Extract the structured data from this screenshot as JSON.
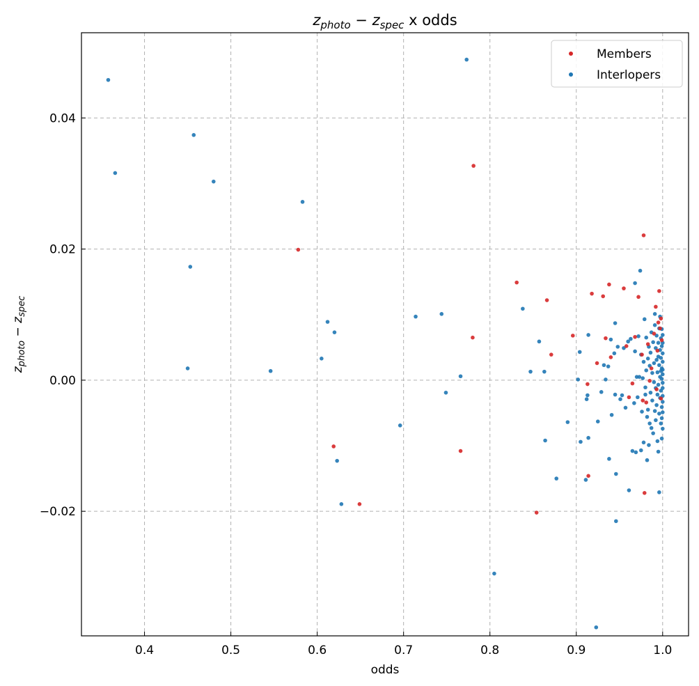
{
  "chart_data": {
    "type": "scatter",
    "title": "z_photo − z_spec x odds",
    "title_parts": {
      "z": "z",
      "photo_sub": "photo",
      "minus": " − ",
      "spec_sub": "spec",
      "suffix": " x odds"
    },
    "xlabel": "odds",
    "ylabel_parts": {
      "z": "z",
      "photo_sub": "photo",
      "minus": " − ",
      "spec_sub": "spec"
    },
    "xlim": [
      0.327,
      1.03
    ],
    "ylim": [
      -0.039,
      0.053
    ],
    "xticks": [
      0.4,
      0.5,
      0.6,
      0.7,
      0.8,
      0.9,
      1.0
    ],
    "xtick_labels": [
      "0.4",
      "0.5",
      "0.6",
      "0.7",
      "0.8",
      "0.9",
      "1.0"
    ],
    "yticks": [
      -0.02,
      0.0,
      0.02,
      0.04
    ],
    "ytick_labels": [
      "−0.02",
      "0.00",
      "0.02",
      "0.04"
    ],
    "grid": true,
    "legend_position": "top-right",
    "series": [
      {
        "name": "Members",
        "color": "#d62728",
        "points": [
          [
            0.578,
            0.0199
          ],
          [
            0.619,
            -0.0101
          ],
          [
            0.649,
            -0.0189
          ],
          [
            0.766,
            -0.0108
          ],
          [
            0.78,
            0.0065
          ],
          [
            0.781,
            0.0327
          ],
          [
            0.831,
            0.0149
          ],
          [
            0.854,
            -0.0202
          ],
          [
            0.866,
            0.0122
          ],
          [
            0.871,
            0.0039
          ],
          [
            0.896,
            0.0068
          ],
          [
            0.913,
            -0.0006
          ],
          [
            0.914,
            -0.0146
          ],
          [
            0.918,
            0.0132
          ],
          [
            0.924,
            0.0026
          ],
          [
            0.931,
            0.0128
          ],
          [
            0.934,
            0.0064
          ],
          [
            0.938,
            0.0146
          ],
          [
            0.94,
            0.0035
          ],
          [
            0.955,
            0.014
          ],
          [
            0.958,
            0.0052
          ],
          [
            0.961,
            -0.0026
          ],
          [
            0.965,
            -0.0005
          ],
          [
            0.968,
            0.0066
          ],
          [
            0.972,
            0.0127
          ],
          [
            0.976,
            0.0039
          ],
          [
            0.977,
            -0.0031
          ],
          [
            0.978,
            0.0221
          ],
          [
            0.979,
            -0.0172
          ],
          [
            0.981,
            -0.0034
          ],
          [
            0.983,
            0.0055
          ],
          [
            0.985,
            -0.0001
          ],
          [
            0.987,
            0.0018
          ],
          [
            0.99,
            0.0071
          ],
          [
            0.992,
            0.0112
          ],
          [
            0.993,
            -0.0014
          ],
          [
            0.994,
            0.0045
          ],
          [
            0.995,
            0.0088
          ],
          [
            0.996,
            0.0136
          ],
          [
            0.997,
            0.0079
          ],
          [
            0.998,
            0.0094
          ],
          [
            0.998,
            -0.0028
          ],
          [
            0.999,
            0.0061
          ]
        ]
      },
      {
        "name": "Interlopers",
        "color": "#1f77b4",
        "points": [
          [
            0.358,
            0.0458
          ],
          [
            0.366,
            0.0316
          ],
          [
            0.45,
            0.0018
          ],
          [
            0.453,
            0.0173
          ],
          [
            0.457,
            0.0374
          ],
          [
            0.48,
            0.0303
          ],
          [
            0.546,
            0.0014
          ],
          [
            0.583,
            0.0272
          ],
          [
            0.605,
            0.0033
          ],
          [
            0.612,
            0.0089
          ],
          [
            0.62,
            0.0073
          ],
          [
            0.623,
            -0.0123
          ],
          [
            0.628,
            -0.0189
          ],
          [
            0.696,
            -0.0069
          ],
          [
            0.714,
            0.0097
          ],
          [
            0.744,
            0.0101
          ],
          [
            0.749,
            -0.0019
          ],
          [
            0.766,
            0.0006
          ],
          [
            0.773,
            0.0489
          ],
          [
            0.805,
            -0.0295
          ],
          [
            0.838,
            0.0109
          ],
          [
            0.847,
            0.0013
          ],
          [
            0.857,
            0.0059
          ],
          [
            0.863,
            0.0013
          ],
          [
            0.864,
            -0.0092
          ],
          [
            0.877,
            -0.015
          ],
          [
            0.89,
            -0.0064
          ],
          [
            0.902,
            0.0001
          ],
          [
            0.904,
            0.0043
          ],
          [
            0.905,
            -0.0094
          ],
          [
            0.911,
            -0.0152
          ],
          [
            0.912,
            -0.0029
          ],
          [
            0.913,
            -0.0023
          ],
          [
            0.914,
            -0.0088
          ],
          [
            0.914,
            0.0069
          ],
          [
            0.923,
            -0.0377
          ],
          [
            0.925,
            -0.0063
          ],
          [
            0.929,
            -0.0018
          ],
          [
            0.932,
            0.0023
          ],
          [
            0.934,
            0.0001
          ],
          [
            0.937,
            0.0021
          ],
          [
            0.938,
            -0.012
          ],
          [
            0.94,
            0.0062
          ],
          [
            0.941,
            -0.0053
          ],
          [
            0.944,
            0.0041
          ],
          [
            0.945,
            0.0087
          ],
          [
            0.945,
            -0.0022
          ],
          [
            0.946,
            -0.0143
          ],
          [
            0.946,
            -0.0215
          ],
          [
            0.948,
            0.0051
          ],
          [
            0.951,
            -0.0029
          ],
          [
            0.953,
            -0.0023
          ],
          [
            0.955,
            0.0049
          ],
          [
            0.957,
            -0.0042
          ],
          [
            0.96,
            0.0059
          ],
          [
            0.961,
            -0.0168
          ],
          [
            0.963,
            0.0063
          ],
          [
            0.965,
            -0.0108
          ],
          [
            0.967,
            -0.0035
          ],
          [
            0.968,
            0.0044
          ],
          [
            0.968,
            0.0148
          ],
          [
            0.969,
            -0.011
          ],
          [
            0.97,
            0.0005
          ],
          [
            0.971,
            -0.0026
          ],
          [
            0.972,
            0.0067
          ],
          [
            0.973,
            0.0005
          ],
          [
            0.974,
            0.0167
          ],
          [
            0.975,
            0.0039
          ],
          [
            0.975,
            -0.0107
          ],
          [
            0.976,
            -0.0048
          ],
          [
            0.977,
            0.0003
          ],
          [
            0.978,
            0.0028
          ],
          [
            0.978,
            -0.0095
          ],
          [
            0.979,
            0.0093
          ],
          [
            0.98,
            -0.0011
          ],
          [
            0.98,
            -0.0022
          ],
          [
            0.981,
            0.0015
          ],
          [
            0.981,
            0.0065
          ],
          [
            0.982,
            -0.0056
          ],
          [
            0.982,
            -0.0122
          ],
          [
            0.983,
            -0.0045
          ],
          [
            0.983,
            0.0033
          ],
          [
            0.984,
            0.0051
          ],
          [
            0.984,
            -0.0099
          ],
          [
            0.985,
            -0.0066
          ],
          [
            0.985,
            0.0022
          ],
          [
            0.986,
            -0.0019
          ],
          [
            0.986,
            0.0042
          ],
          [
            0.987,
            -0.0073
          ],
          [
            0.987,
            0.0073
          ],
          [
            0.988,
            -0.0031
          ],
          [
            0.988,
            0.0011
          ],
          [
            0.989,
            0.0058
          ],
          [
            0.989,
            -0.0081
          ],
          [
            0.99,
            0.0026
          ],
          [
            0.99,
            -0.0003
          ],
          [
            0.991,
            0.0084
          ],
          [
            0.991,
            -0.0047
          ],
          [
            0.991,
            0.0101
          ],
          [
            0.992,
            -0.0012
          ],
          [
            0.992,
            0.0049
          ],
          [
            0.992,
            -0.0061
          ],
          [
            0.993,
            0.0031
          ],
          [
            0.993,
            -0.0038
          ],
          [
            0.993,
            0.0068
          ],
          [
            0.994,
            -0.0022
          ],
          [
            0.994,
            0.0012
          ],
          [
            0.994,
            -0.0093
          ],
          [
            0.995,
            0.0057
          ],
          [
            0.995,
            -0.0007
          ],
          [
            0.995,
            0.0036
          ],
          [
            0.995,
            -0.0109
          ],
          [
            0.996,
            0.0079
          ],
          [
            0.996,
            -0.0051
          ],
          [
            0.996,
            0.0023
          ],
          [
            0.996,
            -0.0171
          ],
          [
            0.997,
            0.0005
          ],
          [
            0.997,
            -0.0027
          ],
          [
            0.997,
            0.0046
          ],
          [
            0.997,
            0.0097
          ],
          [
            0.998,
            -0.0016
          ],
          [
            0.998,
            0.0014
          ],
          [
            0.998,
            -0.0066
          ],
          [
            0.998,
            0.0034
          ],
          [
            0.998,
            0.0064
          ],
          [
            0.999,
            -0.0041
          ],
          [
            0.999,
            0.0002
          ],
          [
            0.999,
            0.0052
          ],
          [
            0.999,
            -0.0058
          ],
          [
            0.999,
            0.0018
          ],
          [
            0.999,
            0.0078
          ],
          [
            0.999,
            -0.0089
          ],
          [
            1.0,
            -0.0024
          ],
          [
            1.0,
            0.0009
          ],
          [
            1.0,
            0.0041
          ],
          [
            1.0,
            -0.0004
          ],
          [
            1.0,
            0.0028
          ],
          [
            1.0,
            -0.0074
          ],
          [
            1.0,
            0.0057
          ],
          [
            1.0,
            -0.0033
          ],
          [
            1.0,
            0.0016
          ],
          [
            1.0,
            -0.0012
          ],
          [
            1.0,
            0.0069
          ],
          [
            1.0,
            -0.0049
          ]
        ]
      }
    ]
  }
}
